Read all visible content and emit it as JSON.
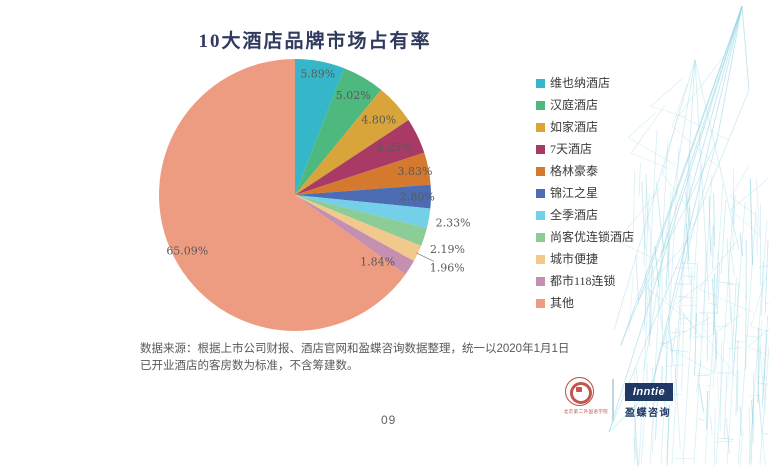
{
  "page": {
    "page_number": "09",
    "source_note": "数据来源：根据上市公司财报、酒店官网和盈蝶咨询数据整理，统一以2020年1月1日已开业酒店的客房数为标准，不含筹建数。"
  },
  "footer_logos": {
    "university_seal_text": "北京第二外国语学院",
    "inntie_wordmark": "Inntie",
    "inntie_name_cn": "盈蝶咨询"
  },
  "chart_data": {
    "type": "pie",
    "title": "10大酒店品牌市场占有率",
    "legend_position": "right",
    "start_angle_deg": 0,
    "direction": "clockwise",
    "label_format": "percent_two_decimals",
    "labels": [
      "维也纳酒店",
      "汉庭酒店",
      "如家酒店",
      "7天酒店",
      "格林豪泰",
      "锦江之星",
      "全季酒店",
      "尚客优连锁酒店",
      "城市便捷",
      "都市118连锁",
      "其他"
    ],
    "values": [
      5.89,
      5.02,
      4.8,
      4.25,
      3.83,
      2.8,
      2.33,
      2.19,
      1.96,
      1.84,
      65.09
    ],
    "colors": [
      "#35b7c9",
      "#4eb97e",
      "#d9a53a",
      "#a93a66",
      "#d5792f",
      "#4c6db3",
      "#74cfe9",
      "#8bcc97",
      "#f2c98c",
      "#c48fb0",
      "#ee9c81"
    ],
    "label_color": "#595959",
    "title_color": "#303a5e",
    "sketch_color": "#8ed2e3"
  }
}
